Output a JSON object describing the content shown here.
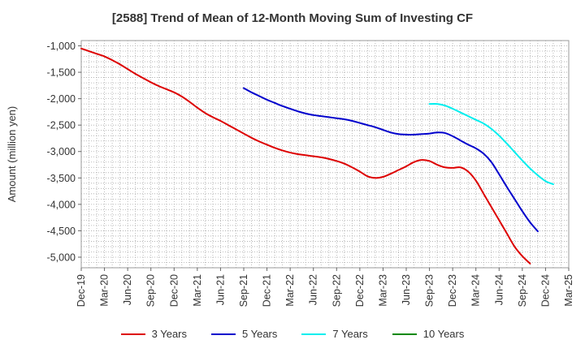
{
  "chart_data": {
    "type": "line",
    "title": "[2588]  Trend of Mean of 12-Month Moving Sum of Investing CF",
    "xlabel": "",
    "ylabel": "Amount (million yen)",
    "ylim": [
      -5200,
      -900
    ],
    "yticks": [
      -1000,
      -1500,
      -2000,
      -2500,
      -3000,
      -3500,
      -4000,
      -4500,
      -5000
    ],
    "ytick_labels": [
      "-1,000",
      "-1,500",
      "-2,000",
      "-2,500",
      "-3,000",
      "-3,500",
      "-4,000",
      "-4,500",
      "-5,000"
    ],
    "xtick_labels": [
      "Dec-19",
      "Mar-20",
      "Jun-20",
      "Sep-20",
      "Dec-20",
      "Mar-21",
      "Jun-21",
      "Sep-21",
      "Dec-21",
      "Mar-22",
      "Jun-22",
      "Sep-22",
      "Dec-22",
      "Mar-23",
      "Jun-23",
      "Sep-23",
      "Dec-23",
      "Mar-24",
      "Jun-24",
      "Sep-24",
      "Dec-24",
      "Mar-25"
    ],
    "x_start": "Dec-19",
    "grid": true,
    "legend_position": "bottom",
    "series": [
      {
        "name": "3 Years",
        "color": "#dd0000",
        "start_month_index": 0,
        "values": [
          -1050,
          -1100,
          -1150,
          -1200,
          -1270,
          -1350,
          -1440,
          -1530,
          -1610,
          -1690,
          -1760,
          -1820,
          -1880,
          -1960,
          -2060,
          -2170,
          -2270,
          -2350,
          -2420,
          -2500,
          -2580,
          -2660,
          -2740,
          -2810,
          -2870,
          -2930,
          -2980,
          -3020,
          -3050,
          -3070,
          -3090,
          -3110,
          -3140,
          -3180,
          -3230,
          -3300,
          -3380,
          -3470,
          -3500,
          -3480,
          -3420,
          -3350,
          -3280,
          -3200,
          -3160,
          -3180,
          -3250,
          -3300,
          -3310,
          -3300,
          -3380,
          -3550,
          -3800,
          -4050,
          -4300,
          -4550,
          -4800,
          -4980,
          -5120
        ]
      },
      {
        "name": "5 Years",
        "color": "#0000cc",
        "start_month_index": 21,
        "values": [
          -1800,
          -1880,
          -1950,
          -2020,
          -2080,
          -2140,
          -2190,
          -2240,
          -2280,
          -2310,
          -2330,
          -2350,
          -2370,
          -2390,
          -2420,
          -2460,
          -2500,
          -2540,
          -2590,
          -2640,
          -2670,
          -2680,
          -2680,
          -2670,
          -2660,
          -2640,
          -2650,
          -2710,
          -2790,
          -2870,
          -2940,
          -3040,
          -3200,
          -3430,
          -3670,
          -3900,
          -4130,
          -4340,
          -4510
        ]
      },
      {
        "name": "7 Years",
        "color": "#00eeee",
        "start_month_index": 45,
        "values": [
          -2100,
          -2100,
          -2130,
          -2190,
          -2260,
          -2330,
          -2400,
          -2470,
          -2570,
          -2700,
          -2850,
          -3010,
          -3170,
          -3320,
          -3450,
          -3560,
          -3620
        ]
      },
      {
        "name": "10 Years",
        "color": "#008800",
        "start_month_index": 0,
        "values": []
      }
    ]
  }
}
